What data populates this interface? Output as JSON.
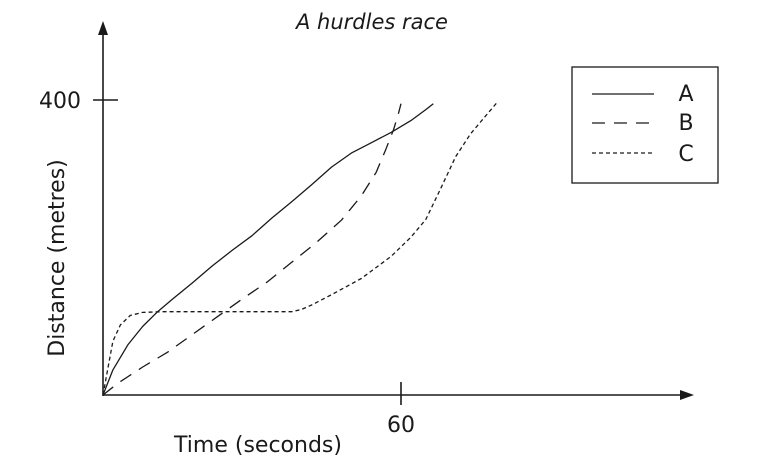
{
  "chart_data": {
    "type": "line",
    "title": "A hurdles race",
    "xlabel": "Time (seconds)",
    "ylabel": "Distance (metres)",
    "x_ticks": [
      60
    ],
    "y_ticks": [
      400
    ],
    "x_tick_labels": [
      "60"
    ],
    "y_tick_labels": [
      "400"
    ],
    "xlim": [
      0,
      87
    ],
    "ylim": [
      0,
      470
    ],
    "legend_position": "top-right",
    "series": [
      {
        "name": "A",
        "dash": "solid",
        "x": [
          0,
          2,
          5,
          8,
          11,
          14,
          18,
          22,
          26,
          30,
          34,
          38,
          42,
          46,
          50,
          54,
          58,
          62,
          65,
          66.5
        ],
        "y": [
          0,
          34,
          68,
          93,
          113,
          130,
          152,
          175,
          196,
          216,
          240,
          262,
          285,
          309,
          328,
          342,
          356,
          372,
          387,
          395
        ]
      },
      {
        "name": "B",
        "dash": "dashed",
        "x": [
          0,
          3,
          8,
          13,
          18,
          23,
          28,
          33,
          38,
          43,
          48,
          52,
          55,
          57,
          58.5,
          59.5,
          60
        ],
        "y": [
          0,
          16,
          38,
          58,
          82,
          106,
          130,
          153,
          180,
          207,
          237,
          270,
          302,
          334,
          360,
          382,
          395
        ]
      },
      {
        "name": "C",
        "dash": "dotted",
        "x": [
          0,
          1,
          2,
          3.5,
          5.5,
          8,
          12,
          16,
          22,
          28,
          34,
          38,
          40,
          42,
          46,
          52,
          58,
          62,
          65,
          68,
          71,
          74,
          77,
          79.5
        ],
        "y": [
          0,
          37,
          73,
          95,
          108,
          112,
          113,
          113,
          113,
          113,
          113,
          113,
          116,
          122,
          136,
          158,
          188,
          214,
          238,
          280,
          323,
          354,
          378,
          398
        ]
      }
    ]
  }
}
